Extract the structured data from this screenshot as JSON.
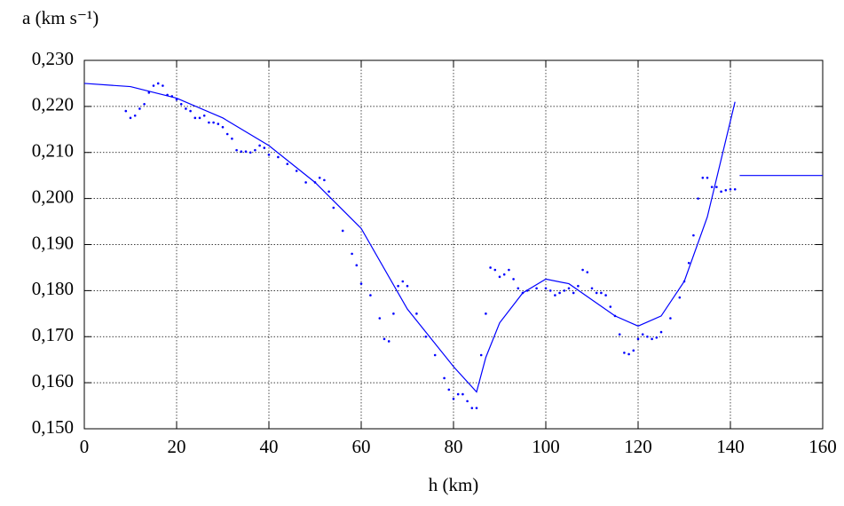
{
  "chart_data": {
    "type": "line",
    "ylabel": "a (km s⁻¹)",
    "xlabel": "h (km)",
    "xlim": [
      0,
      160
    ],
    "xticks": [
      0,
      20,
      40,
      60,
      80,
      100,
      120,
      140,
      160
    ],
    "ylim": [
      0.15,
      0.23
    ],
    "yticks": [
      {
        "value": 0.15,
        "label": "0,150"
      },
      {
        "value": 0.16,
        "label": "0,160"
      },
      {
        "value": 0.17,
        "label": "0,170"
      },
      {
        "value": 0.18,
        "label": "0,180"
      },
      {
        "value": 0.19,
        "label": "0,190"
      },
      {
        "value": 0.2,
        "label": "0,200"
      },
      {
        "value": 0.21,
        "label": "0,210"
      },
      {
        "value": 0.22,
        "label": "0,220"
      },
      {
        "value": 0.23,
        "label": "0,230"
      }
    ],
    "grid": true,
    "series": [
      {
        "type": "scatter",
        "color": "#0000ff",
        "x": [
          9,
          10,
          11,
          12,
          13,
          14,
          15,
          16,
          17,
          18,
          19,
          20,
          21,
          22,
          23,
          24,
          25,
          26,
          27,
          28,
          29,
          30,
          31,
          32,
          33,
          34,
          35,
          36,
          37,
          38,
          39,
          40,
          42,
          44,
          46,
          48,
          50,
          51,
          52,
          53,
          54,
          56,
          58,
          59,
          60,
          62,
          64,
          65,
          66,
          67,
          68,
          69,
          70,
          72,
          74,
          76,
          78,
          79,
          80,
          81,
          82,
          83,
          84,
          85,
          86,
          87,
          88,
          89,
          90,
          91,
          92,
          93,
          94,
          95,
          96,
          98,
          100,
          101,
          102,
          103,
          104,
          105,
          106,
          107,
          108,
          109,
          110,
          111,
          112,
          113,
          114,
          115,
          116,
          117,
          118,
          119,
          120,
          121,
          122,
          123,
          124,
          125,
          127,
          129,
          130,
          131,
          132,
          133,
          134,
          135,
          136,
          137,
          138,
          139,
          140,
          141
        ],
        "values": [
          0.219,
          0.2175,
          0.218,
          0.2195,
          0.2205,
          0.223,
          0.2245,
          0.225,
          0.2245,
          0.2225,
          0.2222,
          0.2215,
          0.2205,
          0.2195,
          0.219,
          0.2175,
          0.2175,
          0.218,
          0.2165,
          0.2165,
          0.2162,
          0.2155,
          0.214,
          0.213,
          0.2105,
          0.2102,
          0.2102,
          0.21,
          0.2105,
          0.2115,
          0.211,
          0.2095,
          0.209,
          0.2075,
          0.206,
          0.2035,
          0.2035,
          0.2045,
          0.204,
          0.2015,
          0.198,
          0.193,
          0.188,
          0.1855,
          0.1815,
          0.179,
          0.174,
          0.1695,
          0.169,
          0.175,
          0.181,
          0.182,
          0.181,
          0.175,
          0.17,
          0.166,
          0.161,
          0.1585,
          0.1565,
          0.1575,
          0.1575,
          0.156,
          0.1545,
          0.1545,
          0.166,
          0.175,
          0.185,
          0.1845,
          0.183,
          0.1835,
          0.1845,
          0.1825,
          0.1805,
          0.1795,
          0.18,
          0.1805,
          0.1805,
          0.18,
          0.179,
          0.1795,
          0.18,
          0.1805,
          0.1795,
          0.181,
          0.1845,
          0.184,
          0.1805,
          0.1795,
          0.1795,
          0.179,
          0.1765,
          0.1745,
          0.1705,
          0.1665,
          0.1662,
          0.167,
          0.1695,
          0.1705,
          0.17,
          0.1695,
          0.1698,
          0.171,
          0.174,
          0.1785,
          0.182,
          0.186,
          0.192,
          0.2,
          0.2045,
          0.2045,
          0.2025,
          0.2025,
          0.2015,
          0.2018,
          0.202,
          0.202
        ]
      },
      {
        "type": "line",
        "color": "#0000ff",
        "x": [
          0,
          10,
          20,
          30,
          40,
          50,
          60,
          70,
          80,
          85,
          87,
          90,
          95,
          100,
          105,
          110,
          115,
          120,
          125,
          130,
          135,
          141,
          141.5,
          142,
          160
        ],
        "values": [
          0.225,
          0.2243,
          0.2218,
          0.2175,
          0.2115,
          0.2035,
          0.1935,
          0.176,
          0.1635,
          0.158,
          0.1655,
          0.173,
          0.1795,
          0.1825,
          0.1815,
          0.178,
          0.1745,
          0.1723,
          0.1745,
          0.182,
          0.196,
          0.221,
          null,
          0.205,
          0.205
        ]
      }
    ]
  }
}
